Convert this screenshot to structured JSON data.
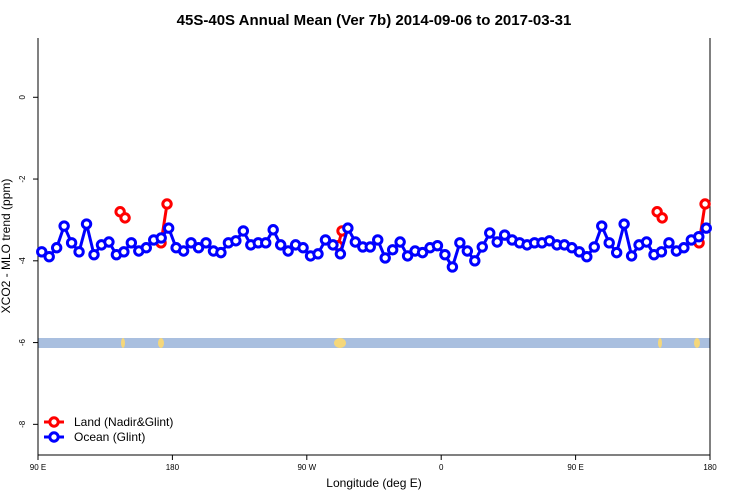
{
  "chart_data": {
    "type": "line",
    "title": "45S-40S Annual Mean (Ver 7b)   2014-09-06 to 2017-03-31",
    "xlabel": "Longitude (deg E)",
    "ylabel": "XCO2 - MLO trend (ppm)",
    "xlim": [
      90,
      540
    ],
    "xticks": [
      {
        "value": 90,
        "label": "90 E"
      },
      {
        "value": 180,
        "label": "180"
      },
      {
        "value": 270,
        "label": "90 W"
      },
      {
        "value": 360,
        "label": "0"
      },
      {
        "value": 450,
        "label": "90 E"
      },
      {
        "value": 540,
        "label": "180"
      }
    ],
    "ylim": [
      -8.75,
      1.45
    ],
    "yticks": [
      0,
      -2,
      -4,
      -6,
      -8
    ],
    "legend": "bottom-left",
    "series": [
      {
        "name": "Land (Nadir&Glint)",
        "color": "#ff0000",
        "x": [
          145,
          148.3,
          150,
          172.4,
          176.4,
          180,
          290.9,
          293.6,
          296,
          504.6,
          508,
          510,
          532.7,
          536.7
        ],
        "values": [
          -2.8,
          -2.95,
          null,
          -3.56,
          -2.61,
          null,
          -3.63,
          -3.27,
          null,
          -2.8,
          -2.95,
          null,
          -3.56,
          -2.61
        ]
      },
      {
        "name": "Ocean (Glint)",
        "color": "#0000ff",
        "x": [
          92.5,
          97.5,
          102.5,
          107.5,
          112.5,
          117.5,
          122.5,
          127.5,
          132.5,
          137.5,
          142.5,
          147.5,
          152.5,
          157.5,
          162.5,
          167.5,
          172.5,
          177.5,
          182.5,
          187.5,
          192.5,
          197.5,
          202.5,
          207.5,
          212.5,
          217.5,
          222.5,
          227.5,
          232.5,
          237.5,
          242.5,
          247.5,
          252.5,
          257.5,
          262.5,
          267.5,
          272.5,
          277.5,
          282.5,
          287.5,
          292.5,
          297.5,
          302.5,
          307.5,
          312.5,
          317.5,
          322.5,
          327.5,
          332.5,
          337.5,
          342.5,
          347.5,
          352.5,
          357.5,
          362.5,
          367.5,
          372.5,
          377.5,
          382.5,
          387.5,
          392.5,
          397.5,
          402.5,
          407.5,
          412.5,
          417.5,
          422.5,
          427.5,
          432.5,
          437.5,
          442.5,
          447.5,
          452.5,
          457.5,
          462.5,
          467.5,
          472.5,
          477.5,
          482.5,
          487.5,
          492.5,
          497.5,
          502.5,
          507.5,
          512.5,
          517.5,
          522.5,
          527.5,
          532.5,
          537.5
        ],
        "values": [
          -3.78,
          -3.9,
          -3.68,
          -3.15,
          -3.56,
          -3.78,
          -3.1,
          -3.85,
          -3.61,
          -3.54,
          -3.85,
          -3.78,
          -3.56,
          -3.76,
          -3.68,
          -3.49,
          -3.44,
          -3.2,
          -3.68,
          -3.76,
          -3.56,
          -3.68,
          -3.56,
          -3.76,
          -3.8,
          -3.56,
          -3.51,
          -3.27,
          -3.61,
          -3.56,
          -3.56,
          -3.24,
          -3.61,
          -3.76,
          -3.61,
          -3.68,
          -3.88,
          -3.83,
          -3.49,
          -3.61,
          -3.83,
          -3.2,
          -3.54,
          -3.66,
          -3.66,
          -3.49,
          -3.93,
          -3.73,
          -3.54,
          -3.88,
          -3.76,
          -3.8,
          -3.68,
          -3.63,
          -3.85,
          -4.15,
          -3.56,
          -3.76,
          -4.0,
          -3.66,
          -3.32,
          -3.54,
          -3.37,
          -3.49,
          -3.56,
          -3.61,
          -3.56,
          -3.56,
          -3.51,
          -3.61,
          -3.61,
          -3.68,
          -3.78,
          -3.9,
          -3.66,
          -3.15,
          -3.56,
          -3.8,
          -3.1,
          -3.88,
          -3.61,
          -3.54,
          -3.85,
          -3.78,
          -3.56,
          -3.76,
          -3.68,
          -3.49,
          -3.41,
          -3.2
        ]
      }
    ]
  }
}
